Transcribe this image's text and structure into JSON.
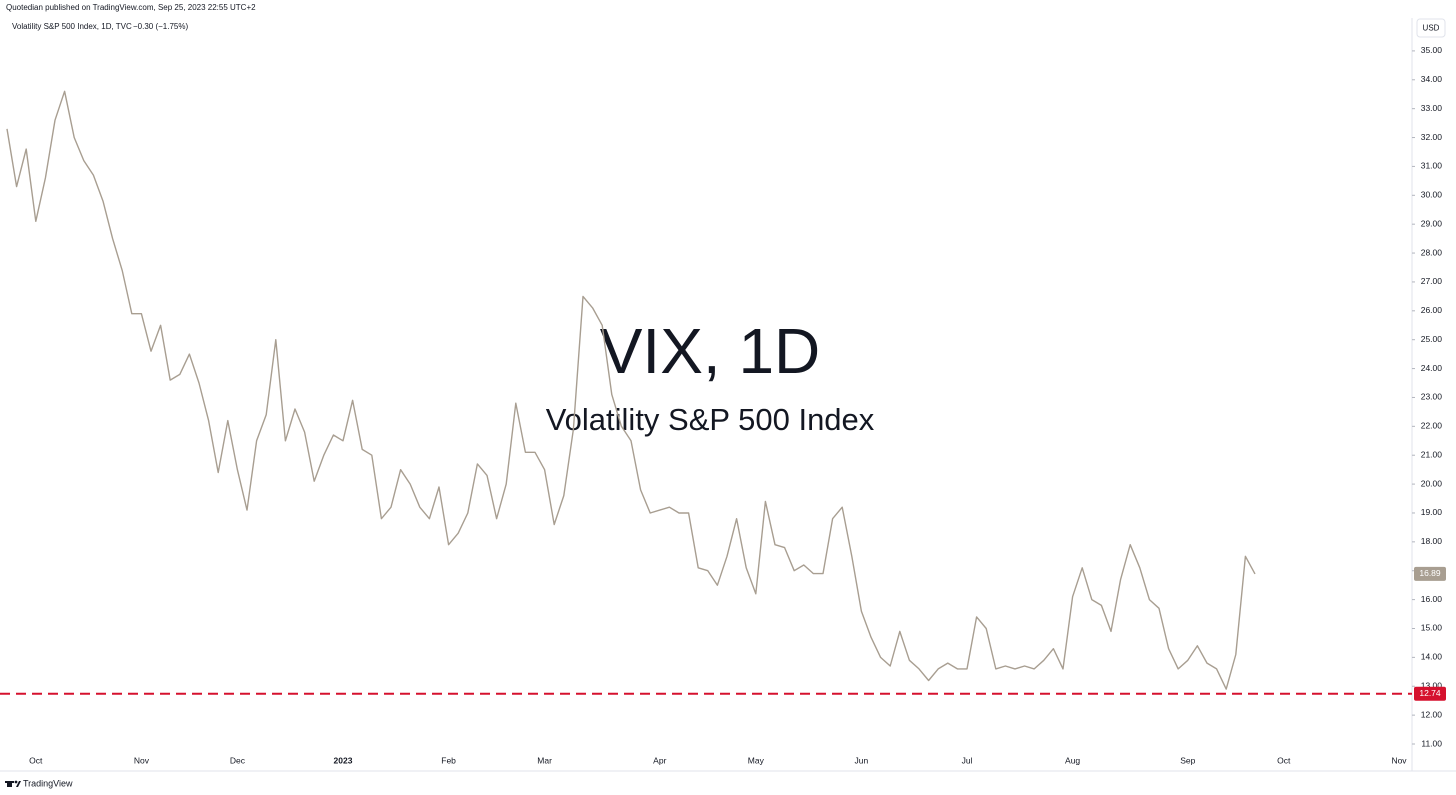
{
  "header": {
    "publisher": "Quotedian published on TradingView.com, Sep 25, 2023 22:55 UTC+2",
    "footer": "TradingView"
  },
  "chart_data": {
    "type": "line",
    "title": "Volatility S&P 500 Index, 1D, TVC",
    "change": "−0.30 (−1.75%)",
    "watermark": "VIX, 1D",
    "watermark_subtitle": "Volatility S&P 500 Index",
    "currency": "USD",
    "color": "#a89e91",
    "categories": [
      null,
      null,
      null,
      "Oct",
      null,
      null,
      null,
      null,
      null,
      null,
      null,
      null,
      null,
      null,
      "Nov",
      null,
      null,
      null,
      null,
      null,
      null,
      null,
      null,
      null,
      "Dec",
      null,
      null,
      null,
      null,
      null,
      null,
      null,
      null,
      null,
      null,
      "2023",
      null,
      null,
      null,
      null,
      null,
      null,
      null,
      null,
      null,
      null,
      "Feb",
      null,
      null,
      null,
      null,
      null,
      null,
      null,
      null,
      null,
      "Mar",
      null,
      null,
      null,
      null,
      null,
      null,
      null,
      null,
      null,
      null,
      null,
      "Apr",
      null,
      null,
      null,
      null,
      null,
      null,
      null,
      null,
      null,
      "May",
      null,
      null,
      null,
      null,
      null,
      null,
      null,
      null,
      null,
      null,
      "Jun",
      null,
      null,
      null,
      null,
      null,
      null,
      null,
      null,
      null,
      null,
      "Jul",
      null,
      null,
      null,
      null,
      null,
      null,
      null,
      null,
      null,
      null,
      "Aug",
      null,
      null,
      null,
      null,
      null,
      null,
      null,
      null,
      null,
      null,
      null,
      "Sep",
      null,
      null,
      null,
      null,
      null,
      null,
      null,
      null,
      null,
      "Oct",
      null,
      null,
      null,
      null,
      null,
      null,
      null,
      null,
      null,
      null,
      null,
      "Nov"
    ],
    "values": [
      32.3,
      30.3,
      31.6,
      29.1,
      30.6,
      32.6,
      33.6,
      32.0,
      31.2,
      30.7,
      29.8,
      28.5,
      27.4,
      25.9,
      25.9,
      24.6,
      25.5,
      23.6,
      23.8,
      24.5,
      23.5,
      22.2,
      20.4,
      22.2,
      20.5,
      19.1,
      21.5,
      22.4,
      25.0,
      21.5,
      22.6,
      21.8,
      20.1,
      21.0,
      21.7,
      21.5,
      22.9,
      21.2,
      21.0,
      18.8,
      19.2,
      20.5,
      20.0,
      19.2,
      18.8,
      19.9,
      17.9,
      18.3,
      19.0,
      20.7,
      20.3,
      18.8,
      20.0,
      22.8,
      21.1,
      21.1,
      20.5,
      18.6,
      19.6,
      21.9,
      26.5,
      26.1,
      25.5,
      23.1,
      22.0,
      21.5,
      19.8,
      19.0,
      19.1,
      19.2,
      19.0,
      19.0,
      17.1,
      17.0,
      16.5,
      17.5,
      18.8,
      17.1,
      16.2,
      19.4,
      17.9,
      17.8,
      17.0,
      17.2,
      16.9,
      16.9,
      18.8,
      19.2,
      17.5,
      15.6,
      14.7,
      14.0,
      13.7,
      14.9,
      13.9,
      13.6,
      13.2,
      13.6,
      13.8,
      13.6,
      13.6,
      15.4,
      15.0,
      13.6,
      13.7,
      13.6,
      13.7,
      13.6,
      13.9,
      14.3,
      13.6,
      16.1,
      17.1,
      16.0,
      15.8,
      14.9,
      16.7,
      17.9,
      17.1,
      16.0,
      15.7,
      14.3,
      13.6,
      13.9,
      14.4,
      13.8,
      13.6,
      12.9,
      14.1,
      17.5,
      16.89,
      null,
      null,
      null,
      null,
      null,
      null,
      null,
      null,
      null,
      null,
      null,
      null,
      null,
      null,
      null
    ],
    "hline": {
      "value": 12.74,
      "color": "#d5112e"
    },
    "ylim": [
      10.1,
      36.07
    ],
    "yticks": [
      {
        "value": 11,
        "label": "11.00"
      },
      {
        "value": 12,
        "label": "12.00"
      },
      {
        "value": 13,
        "label": "13.00"
      },
      {
        "value": 14,
        "label": "14.00"
      },
      {
        "value": 15,
        "label": "15.00"
      },
      {
        "value": 16,
        "label": "16.00"
      },
      {
        "value": 17,
        "label": "17.00"
      },
      {
        "value": 18,
        "label": "18.00"
      },
      {
        "value": 19,
        "label": "19.00"
      },
      {
        "value": 20,
        "label": "20.00"
      },
      {
        "value": 21,
        "label": "21.00"
      },
      {
        "value": 22,
        "label": "22.00"
      },
      {
        "value": 23,
        "label": "23.00"
      },
      {
        "value": 24,
        "label": "24.00"
      },
      {
        "value": 25,
        "label": "25.00"
      },
      {
        "value": 26,
        "label": "26.00"
      },
      {
        "value": 27,
        "label": "27.00"
      },
      {
        "value": 28,
        "label": "28.00"
      },
      {
        "value": 29,
        "label": "29.00"
      },
      {
        "value": 30,
        "label": "30.00"
      },
      {
        "value": 31,
        "label": "31.00"
      },
      {
        "value": 32,
        "label": "32.00"
      },
      {
        "value": 33,
        "label": "33.00"
      },
      {
        "value": 34,
        "label": "34.00"
      },
      {
        "value": 35,
        "label": "35.00"
      }
    ]
  }
}
